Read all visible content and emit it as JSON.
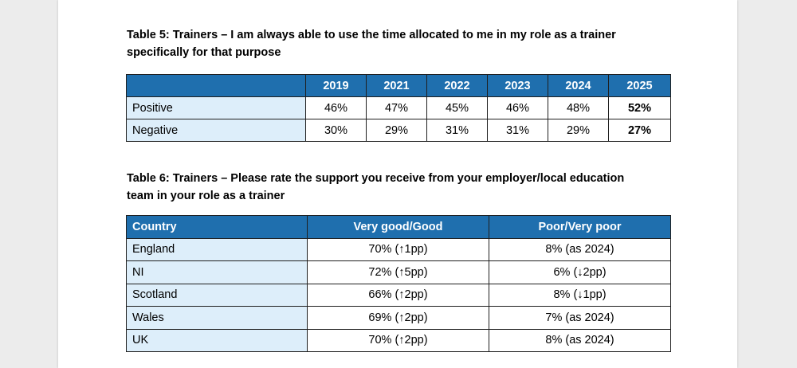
{
  "table5": {
    "caption_line1": "Table 5: Trainers – I am always able to use the time allocated to me in my role as a trainer",
    "caption_line2": "specifically for that purpose",
    "header": [
      "",
      "2019",
      "2021",
      "2022",
      "2023",
      "2024",
      "2025"
    ],
    "rows": [
      {
        "label": "Positive",
        "values": [
          "46%",
          "47%",
          "45%",
          "46%",
          "48%",
          "52%"
        ]
      },
      {
        "label": "Negative",
        "values": [
          "30%",
          "29%",
          "31%",
          "31%",
          "29%",
          "27%"
        ]
      }
    ]
  },
  "table6": {
    "caption_line1": "Table 6: Trainers – Please rate the support you receive from your employer/local education",
    "caption_line2": "team in your role as a trainer",
    "header": [
      "Country",
      "Very good/Good",
      "Poor/Very poor"
    ],
    "rows": [
      {
        "label": "England",
        "values": [
          "70% (↑1pp)",
          "8% (as 2024)"
        ]
      },
      {
        "label": "NI",
        "values": [
          "72% (↑5pp)",
          "6% (↓2pp)"
        ]
      },
      {
        "label": "Scotland",
        "values": [
          "66% (↑2pp)",
          "8% (↓1pp)"
        ]
      },
      {
        "label": "Wales",
        "values": [
          "69% (↑2pp)",
          "7% (as 2024)"
        ]
      },
      {
        "label": "UK",
        "values": [
          "70% (↑2pp)",
          "8% (as 2024)"
        ]
      }
    ]
  },
  "colors": {
    "header_bg": "#1f6fae",
    "label_bg": "#ddeefa",
    "page_bg": "#ececec"
  }
}
